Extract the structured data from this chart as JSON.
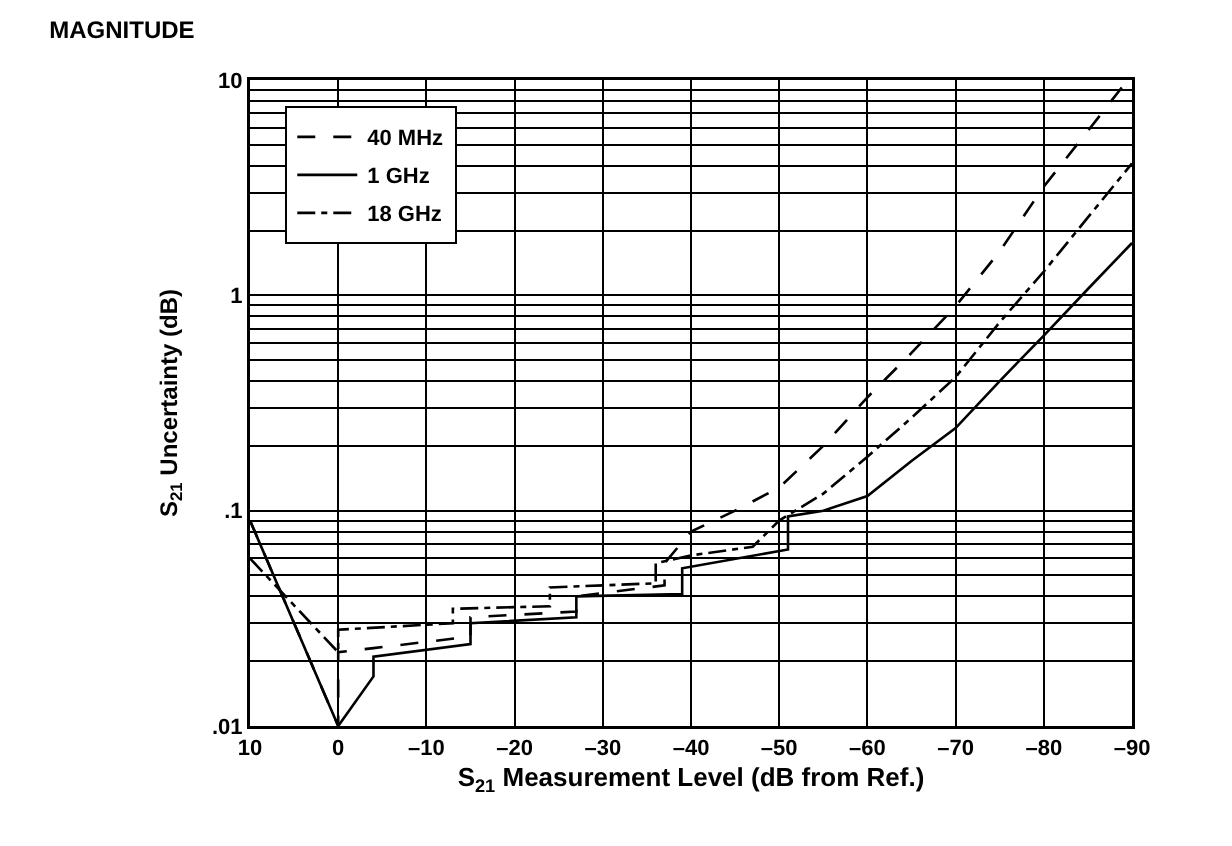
{
  "chart_data": {
    "type": "line",
    "title": "MAGNITUDE",
    "xlabel": "S$_{21}$ Measurement Level (dB from Ref.)",
    "ylabel": "S$_{21}$ Uncertainty (dB)",
    "log": "y",
    "grid": true,
    "legend": "top left",
    "marker": "none",
    "xlim": [
      10,
      -90
    ],
    "xticks": [
      10,
      0,
      {
        "value": -10,
        "label": "–10"
      },
      {
        "value": -20,
        "label": "–20"
      },
      {
        "value": -30,
        "label": "–30"
      },
      {
        "value": -40,
        "label": "–40"
      },
      {
        "value": -50,
        "label": "–50"
      },
      {
        "value": -60,
        "label": "–60"
      },
      {
        "value": -70,
        "label": "–70"
      },
      {
        "value": -80,
        "label": "–80"
      },
      {
        "value": -90,
        "label": "–90"
      }
    ],
    "ylim": [
      0.01,
      10
    ],
    "yticks": [
      {
        "value": 0.01,
        "label": ".01"
      },
      {
        "value": 0.02,
        "label": null
      },
      {
        "value": 0.03,
        "label": null
      },
      {
        "value": 0.04,
        "label": null
      },
      {
        "value": 0.05,
        "label": null
      },
      {
        "value": 0.06,
        "label": null
      },
      {
        "value": 0.07,
        "label": null
      },
      {
        "value": 0.08,
        "label": null
      },
      {
        "value": 0.09,
        "label": null
      },
      {
        "value": 0.1,
        "label": ".1"
      },
      {
        "value": 0.2,
        "label": null
      },
      {
        "value": 0.3,
        "label": null
      },
      {
        "value": 0.4,
        "label": null
      },
      {
        "value": 0.5,
        "label": null
      },
      {
        "value": 0.6,
        "label": null
      },
      {
        "value": 0.7,
        "label": null
      },
      {
        "value": 0.8,
        "label": null
      },
      {
        "value": 0.9,
        "label": null
      },
      1,
      {
        "value": 2,
        "label": null
      },
      {
        "value": 3,
        "label": null
      },
      {
        "value": 4,
        "label": null
      },
      {
        "value": 5,
        "label": null
      },
      {
        "value": 6,
        "label": null
      },
      {
        "value": 7,
        "label": null
      },
      {
        "value": 8,
        "label": null
      },
      {
        "value": 9,
        "label": null
      },
      10
    ],
    "series": [
      {
        "name": "40 MHz",
        "color": "#000000",
        "line_style": "dashed",
        "x": [
          10,
          0,
          0,
          -4,
          -15,
          -15,
          -27,
          -27,
          -37,
          -37,
          -40,
          -45,
          -50,
          -55,
          -60,
          -65,
          -70,
          -75,
          -80,
          -85,
          -89.5
        ],
        "values": [
          0.09,
          0.01,
          0.022,
          0.023,
          0.026,
          0.032,
          0.034,
          0.04,
          0.045,
          0.057,
          0.08,
          0.1,
          0.128,
          0.2,
          0.336,
          0.54,
          0.89,
          1.6,
          3.2,
          5.8,
          10
        ]
      },
      {
        "name": "1 GHz",
        "color": "#000000",
        "line_style": "solid",
        "x": [
          10,
          0,
          -4,
          -4,
          -15,
          -15,
          -27,
          -27,
          -39,
          -39,
          -51,
          -51,
          -55,
          -60,
          -65,
          -70,
          -75,
          -80,
          -85,
          -90
        ],
        "values": [
          0.09,
          0.01,
          0.017,
          0.021,
          0.024,
          0.03,
          0.032,
          0.04,
          0.041,
          0.054,
          0.066,
          0.094,
          0.1,
          0.117,
          0.17,
          0.242,
          0.4,
          0.65,
          1.07,
          1.75
        ]
      },
      {
        "name": "18 GHz",
        "color": "#000000",
        "line_style": "dashdot",
        "x": [
          10,
          0,
          0,
          -13,
          -13,
          -24,
          -24,
          -36,
          -36,
          -40,
          -47,
          -50,
          -55,
          -60,
          -65,
          -70,
          -75,
          -80,
          -85,
          -90
        ],
        "values": [
          0.06,
          0.022,
          0.028,
          0.03,
          0.035,
          0.036,
          0.044,
          0.046,
          0.057,
          0.062,
          0.068,
          0.09,
          0.12,
          0.178,
          0.27,
          0.417,
          0.75,
          1.29,
          2.3,
          4.1
        ]
      }
    ]
  }
}
